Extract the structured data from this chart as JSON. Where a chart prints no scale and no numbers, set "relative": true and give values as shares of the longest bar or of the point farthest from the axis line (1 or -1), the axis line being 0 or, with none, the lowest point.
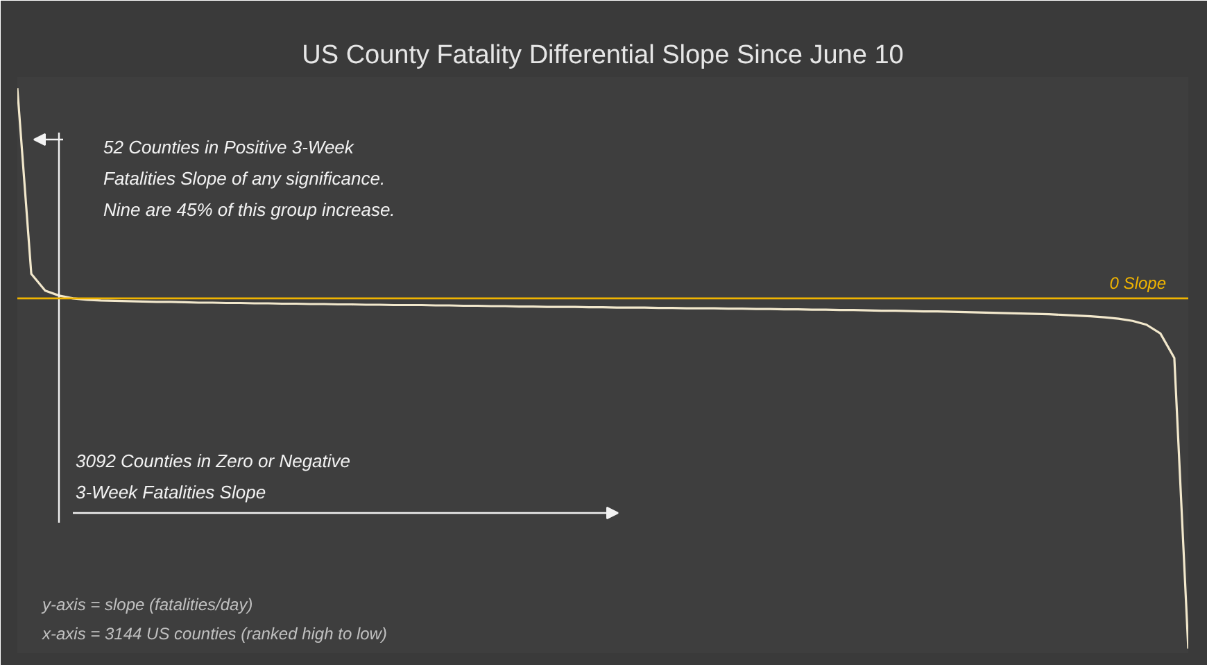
{
  "chart_data": {
    "type": "line",
    "title": "US County Fatality Differential Slope Since June 10",
    "relative": true,
    "categories": [
      null,
      null,
      null,
      null,
      null,
      null,
      null,
      null,
      null,
      null,
      null,
      null,
      null,
      null,
      null,
      null,
      null,
      null,
      null,
      null,
      null,
      null,
      null,
      null,
      null,
      null,
      null,
      null,
      null,
      null,
      null,
      null,
      null,
      null,
      null,
      null,
      null,
      null,
      null,
      null,
      null,
      null,
      null,
      null,
      null,
      null,
      null,
      null,
      null,
      null,
      null,
      null,
      null,
      null,
      null,
      null,
      null,
      null,
      null,
      null,
      null,
      null,
      null,
      null,
      null,
      null,
      null,
      null,
      null,
      null,
      null,
      null,
      null,
      null,
      null,
      null,
      null,
      null,
      null,
      null,
      null,
      null,
      null,
      null,
      null
    ],
    "series": [
      {
        "color": "#f2e8cc",
        "values": [
          0.6,
          0.07,
          0.022,
          0.008,
          0.0,
          -0.004,
          -0.006,
          -0.007,
          -0.008,
          -0.009,
          -0.01,
          -0.01,
          -0.011,
          -0.012,
          -0.012,
          -0.013,
          -0.013,
          -0.014,
          -0.014,
          -0.015,
          -0.015,
          -0.016,
          -0.016,
          -0.017,
          -0.017,
          -0.018,
          -0.018,
          -0.019,
          -0.019,
          -0.019,
          -0.02,
          -0.02,
          -0.021,
          -0.021,
          -0.022,
          -0.022,
          -0.023,
          -0.023,
          -0.024,
          -0.024,
          -0.024,
          -0.025,
          -0.025,
          -0.026,
          -0.026,
          -0.026,
          -0.027,
          -0.027,
          -0.028,
          -0.028,
          -0.028,
          -0.029,
          -0.029,
          -0.03,
          -0.03,
          -0.031,
          -0.031,
          -0.032,
          -0.032,
          -0.033,
          -0.033,
          -0.034,
          -0.035,
          -0.035,
          -0.036,
          -0.037,
          -0.037,
          -0.038,
          -0.039,
          -0.04,
          -0.041,
          -0.042,
          -0.043,
          -0.044,
          -0.045,
          -0.047,
          -0.049,
          -0.051,
          -0.054,
          -0.058,
          -0.064,
          -0.075,
          -0.1,
          -0.17,
          -1
        ]
      }
    ],
    "ref_lines": [
      {
        "axis": "y",
        "value": 0,
        "label": "0 Slope",
        "color": "#f0b400"
      }
    ],
    "annotations": [
      "52 Counties in Positive 3-Week\nFatalities Slope of any significance.\nNine are 45% of this group increase.",
      "3092 Counties in Zero or Negative\n3-Week Fatalities Slope",
      "y-axis = slope (fatalities/day)\nx-axis = 3144  US counties (ranked high to low)"
    ],
    "grid": false
  }
}
